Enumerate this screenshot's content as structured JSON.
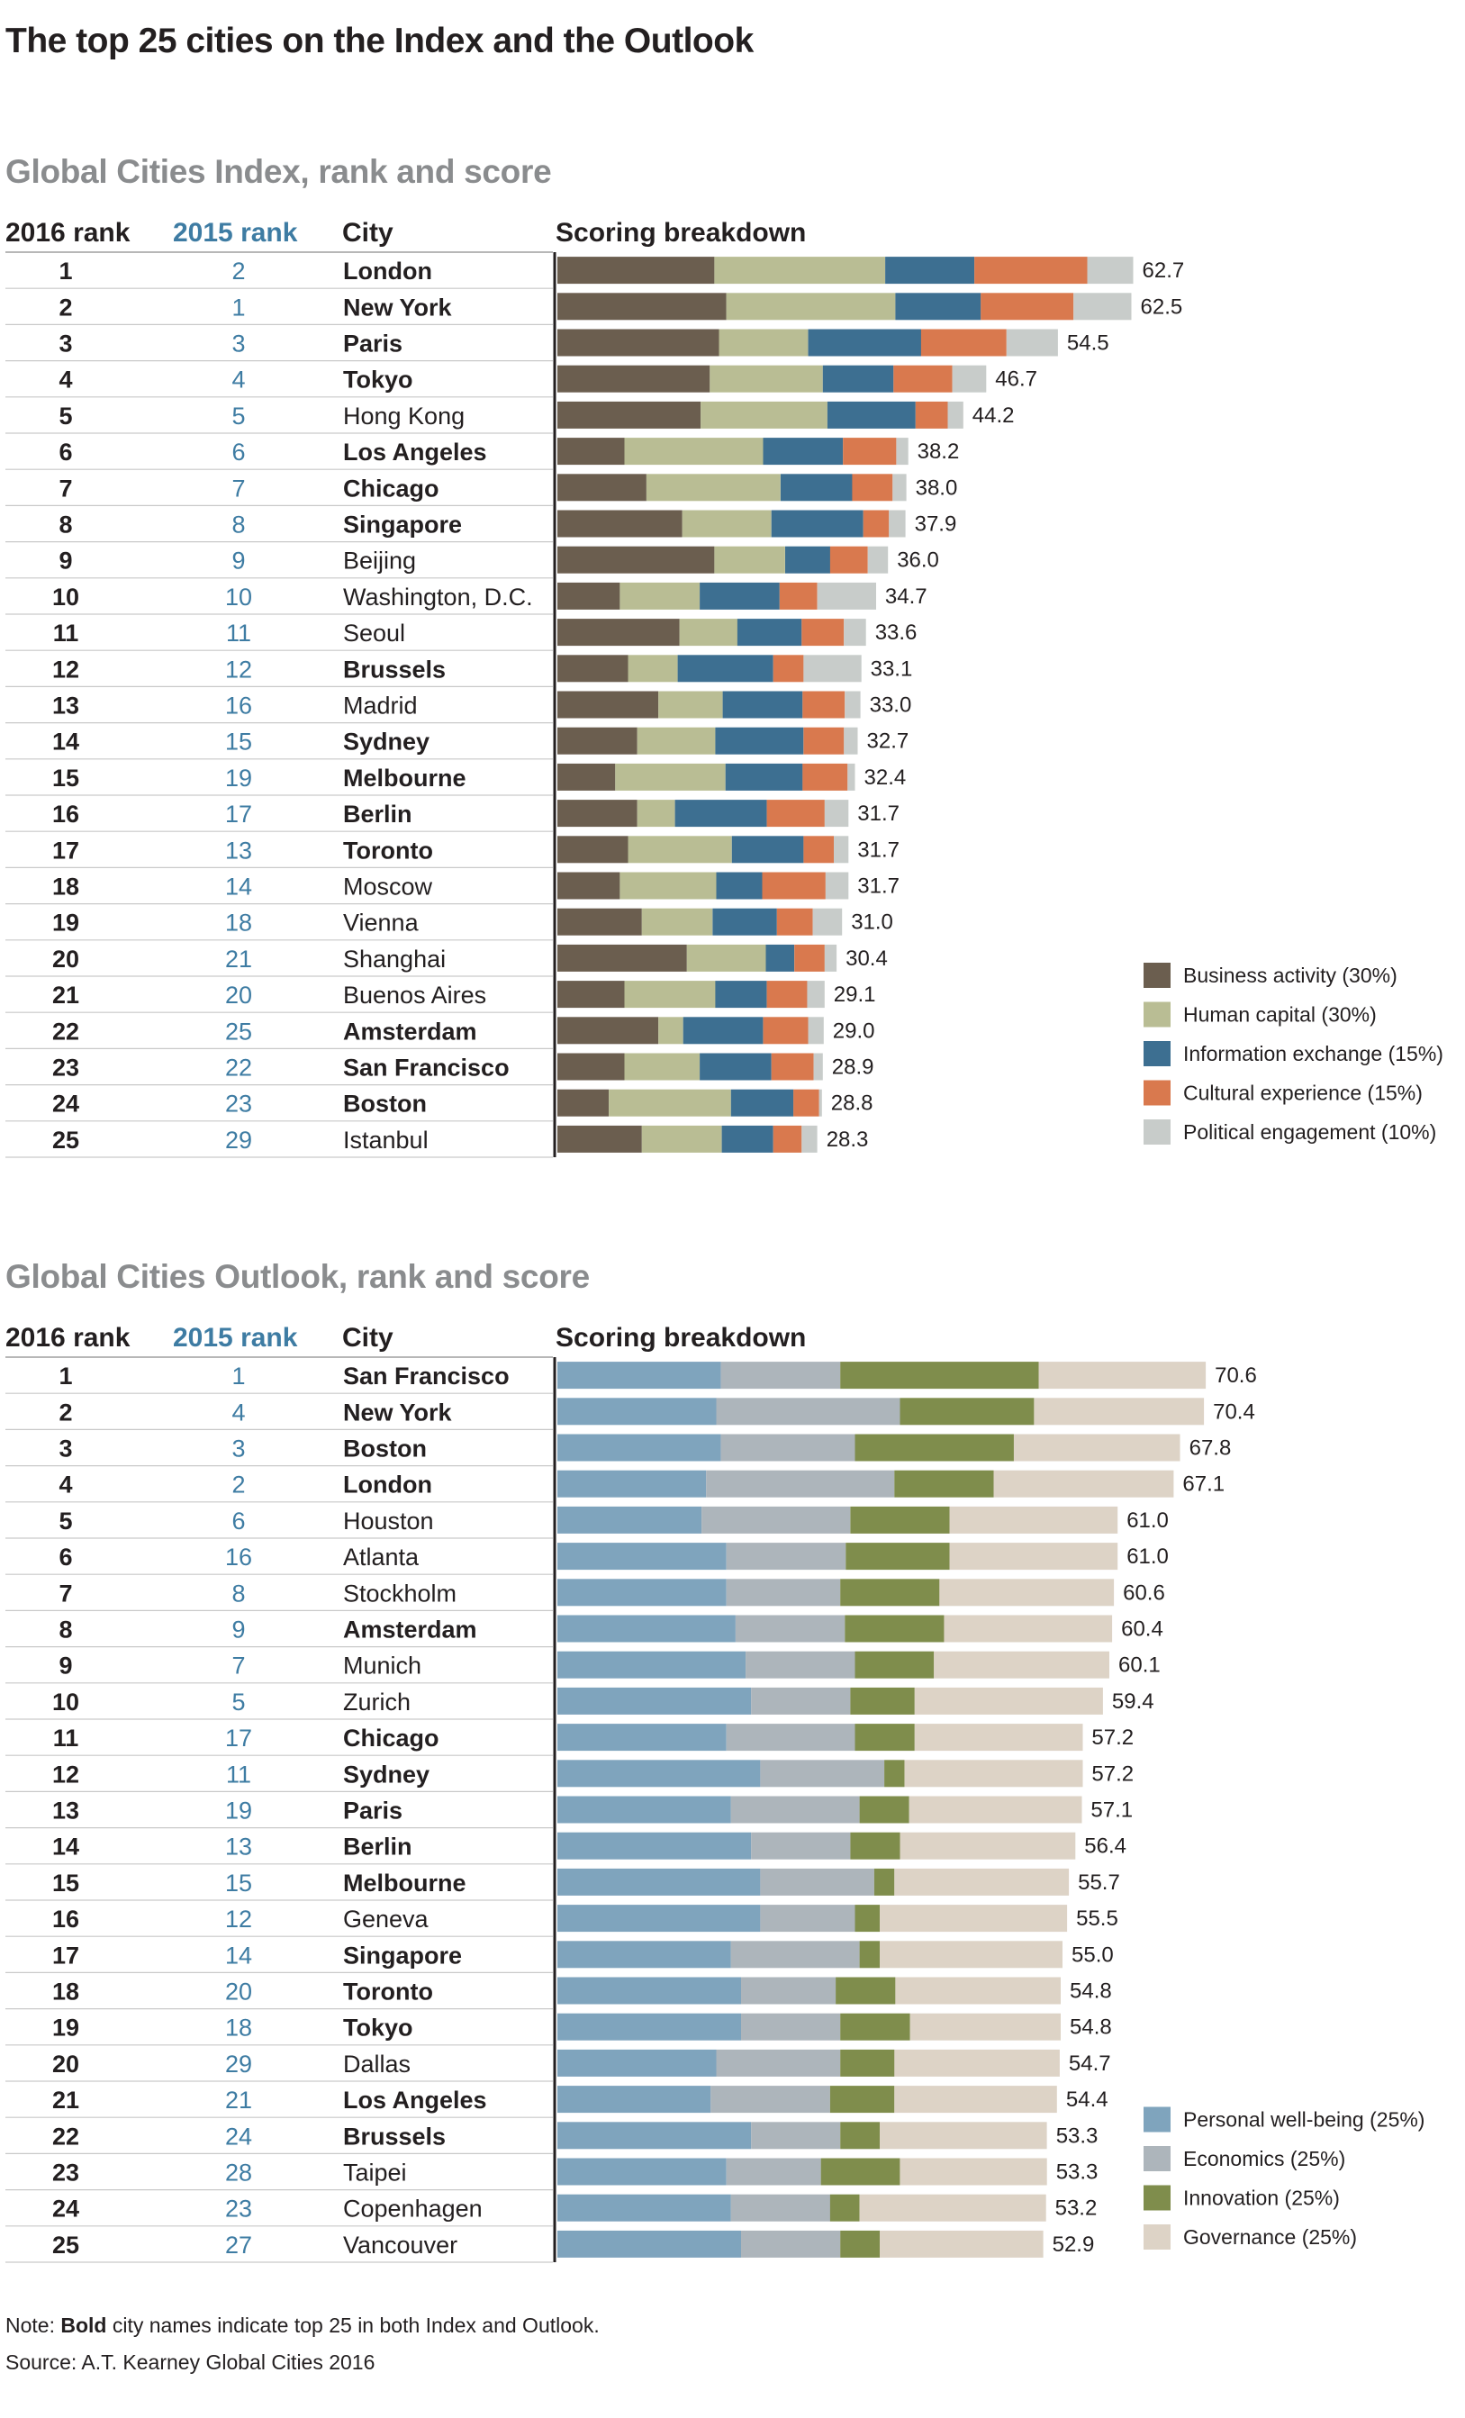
{
  "title": "The top 25 cities on the Index and the Outlook",
  "headers": {
    "rank2016": "2016 rank",
    "rank2015": "2015 rank",
    "city": "City",
    "breakdown": "Scoring breakdown"
  },
  "note": {
    "bold_word": "Bold",
    "prefix": "Note: ",
    "rest": " city names indicate top 25 in both Index and Outlook."
  },
  "source": "Source: A.T. Kearney Global Cities 2016",
  "chart_data": [
    {
      "type": "bar",
      "stacked": true,
      "orientation": "horizontal",
      "title": "Global Cities Index, rank and score",
      "legend_position": "bottom-right",
      "series": [
        {
          "name": "Business activity (30%)",
          "color": "#6b5e4f"
        },
        {
          "name": "Human capital (30%)",
          "color": "#b9bd94"
        },
        {
          "name": "Information exchange (15%)",
          "color": "#3d6f91"
        },
        {
          "name": "Cultural experience (15%)",
          "color": "#d9794e"
        },
        {
          "name": "Political engagement (10%)",
          "color": "#c8ccca"
        }
      ],
      "rows": [
        {
          "rank2016": "1",
          "rank2015": "2",
          "city": "London",
          "bold": true,
          "score": "62.7",
          "parts": [
            17.1,
            18.6,
            9.7,
            12.3,
            5.0
          ]
        },
        {
          "rank2016": "2",
          "rank2015": "1",
          "city": "New York",
          "bold": true,
          "score": "62.5",
          "parts": [
            18.4,
            18.4,
            9.3,
            10.1,
            6.3
          ]
        },
        {
          "rank2016": "3",
          "rank2015": "3",
          "city": "Paris",
          "bold": true,
          "score": "54.5",
          "parts": [
            17.6,
            9.7,
            12.3,
            9.3,
            5.6
          ]
        },
        {
          "rank2016": "4",
          "rank2015": "4",
          "city": "Tokyo",
          "bold": true,
          "score": "46.7",
          "parts": [
            16.6,
            12.3,
            7.7,
            6.4,
            3.7
          ]
        },
        {
          "rank2016": "5",
          "rank2015": "5",
          "city": "Hong Kong",
          "bold": false,
          "score": "44.2",
          "parts": [
            15.6,
            13.8,
            9.6,
            3.5,
            1.7
          ]
        },
        {
          "rank2016": "6",
          "rank2015": "6",
          "city": "Los Angeles",
          "bold": true,
          "score": "38.2",
          "parts": [
            7.3,
            15.1,
            8.7,
            5.8,
            1.3
          ]
        },
        {
          "rank2016": "7",
          "rank2015": "7",
          "city": "Chicago",
          "bold": true,
          "score": "38.0",
          "parts": [
            9.7,
            14.6,
            7.8,
            4.4,
            1.5
          ]
        },
        {
          "rank2016": "8",
          "rank2015": "8",
          "city": "Singapore",
          "bold": true,
          "score": "37.9",
          "parts": [
            13.6,
            9.7,
            10.0,
            2.8,
            1.8
          ]
        },
        {
          "rank2016": "9",
          "rank2015": "9",
          "city": "Beijing",
          "bold": false,
          "score": "36.0",
          "parts": [
            17.1,
            7.7,
            4.9,
            4.1,
            2.2
          ]
        },
        {
          "rank2016": "10",
          "rank2015": "10",
          "city": "Washington, D.C.",
          "bold": false,
          "score": "34.7",
          "parts": [
            6.8,
            8.7,
            8.7,
            4.1,
            6.4
          ]
        },
        {
          "rank2016": "11",
          "rank2015": "11",
          "city": "Seoul",
          "bold": false,
          "score": "33.6",
          "parts": [
            13.3,
            6.3,
            7.0,
            4.6,
            2.4
          ]
        },
        {
          "rank2016": "12",
          "rank2015": "12",
          "city": "Brussels",
          "bold": true,
          "score": "33.1",
          "parts": [
            7.7,
            5.4,
            10.4,
            3.3,
            6.3
          ]
        },
        {
          "rank2016": "13",
          "rank2015": "16",
          "city": "Madrid",
          "bold": false,
          "score": "33.0",
          "parts": [
            11.0,
            7.0,
            8.7,
            4.6,
            1.7
          ]
        },
        {
          "rank2016": "14",
          "rank2015": "15",
          "city": "Sydney",
          "bold": true,
          "score": "32.7",
          "parts": [
            8.7,
            8.5,
            9.6,
            4.4,
            1.5
          ]
        },
        {
          "rank2016": "15",
          "rank2015": "19",
          "city": "Melbourne",
          "bold": true,
          "score": "32.4",
          "parts": [
            6.3,
            12.0,
            8.4,
            4.9,
            0.8
          ]
        },
        {
          "rank2016": "16",
          "rank2015": "17",
          "city": "Berlin",
          "bold": true,
          "score": "31.7",
          "parts": [
            8.7,
            4.1,
            10.0,
            6.3,
            2.6
          ]
        },
        {
          "rank2016": "17",
          "rank2015": "13",
          "city": "Toronto",
          "bold": true,
          "score": "31.7",
          "parts": [
            7.7,
            11.3,
            7.8,
            3.3,
            1.6
          ]
        },
        {
          "rank2016": "18",
          "rank2015": "14",
          "city": "Moscow",
          "bold": false,
          "score": "31.7",
          "parts": [
            6.8,
            10.5,
            5.0,
            6.9,
            2.5
          ]
        },
        {
          "rank2016": "19",
          "rank2015": "18",
          "city": "Vienna",
          "bold": false,
          "score": "31.0",
          "parts": [
            9.2,
            7.7,
            7.0,
            3.9,
            3.2
          ]
        },
        {
          "rank2016": "20",
          "rank2015": "21",
          "city": "Shanghai",
          "bold": false,
          "score": "30.4",
          "parts": [
            14.1,
            8.6,
            3.1,
            3.3,
            1.3
          ]
        },
        {
          "rank2016": "21",
          "rank2015": "20",
          "city": "Buenos Aires",
          "bold": false,
          "score": "29.1",
          "parts": [
            7.3,
            9.9,
            5.6,
            4.4,
            1.9
          ]
        },
        {
          "rank2016": "22",
          "rank2015": "25",
          "city": "Amsterdam",
          "bold": true,
          "score": "29.0",
          "parts": [
            11.0,
            2.7,
            8.7,
            4.9,
            1.7
          ]
        },
        {
          "rank2016": "23",
          "rank2015": "22",
          "city": "San Francisco",
          "bold": true,
          "score": "28.9",
          "parts": [
            7.3,
            8.2,
            7.8,
            4.6,
            1.0
          ]
        },
        {
          "rank2016": "24",
          "rank2015": "23",
          "city": "Boston",
          "bold": true,
          "score": "28.8",
          "parts": [
            5.6,
            13.3,
            6.8,
            2.8,
            0.3
          ]
        },
        {
          "rank2016": "25",
          "rank2015": "29",
          "city": "Istanbul",
          "bold": false,
          "score": "28.3",
          "parts": [
            9.2,
            8.7,
            5.6,
            3.1,
            1.7
          ]
        }
      ]
    },
    {
      "type": "bar",
      "stacked": true,
      "orientation": "horizontal",
      "title": "Global Cities Outlook, rank and score",
      "legend_position": "bottom-right",
      "series": [
        {
          "name": "Personal well-being (25%)",
          "color": "#7fa4bd"
        },
        {
          "name": "Economics (25%)",
          "color": "#adb5bb"
        },
        {
          "name": "Innovation (25%)",
          "color": "#7f8d4c"
        },
        {
          "name": "Governance (25%)",
          "color": "#ddd3c6"
        }
      ],
      "rows": [
        {
          "rank2016": "1",
          "rank2015": "1",
          "city": "San Francisco",
          "bold": true,
          "score": "70.6",
          "parts": [
            17.8,
            13.0,
            21.6,
            18.2
          ]
        },
        {
          "rank2016": "2",
          "rank2015": "4",
          "city": "New York",
          "bold": true,
          "score": "70.4",
          "parts": [
            17.3,
            20.0,
            14.6,
            18.5
          ]
        },
        {
          "rank2016": "3",
          "rank2015": "3",
          "city": "Boston",
          "bold": true,
          "score": "67.8",
          "parts": [
            17.8,
            14.6,
            17.3,
            18.1
          ]
        },
        {
          "rank2016": "4",
          "rank2015": "2",
          "city": "London",
          "bold": true,
          "score": "67.1",
          "parts": [
            16.2,
            20.5,
            10.8,
            19.6
          ]
        },
        {
          "rank2016": "5",
          "rank2015": "6",
          "city": "Houston",
          "bold": false,
          "score": "61.0",
          "parts": [
            15.7,
            16.2,
            10.8,
            18.3
          ]
        },
        {
          "rank2016": "6",
          "rank2015": "16",
          "city": "Atlanta",
          "bold": false,
          "score": "61.0",
          "parts": [
            18.4,
            13.0,
            11.3,
            18.3
          ]
        },
        {
          "rank2016": "7",
          "rank2015": "8",
          "city": "Stockholm",
          "bold": false,
          "score": "60.6",
          "parts": [
            18.4,
            12.4,
            10.8,
            19.0
          ]
        },
        {
          "rank2016": "8",
          "rank2015": "9",
          "city": "Amsterdam",
          "bold": true,
          "score": "60.4",
          "parts": [
            19.4,
            11.9,
            10.8,
            18.3
          ]
        },
        {
          "rank2016": "9",
          "rank2015": "7",
          "city": "Munich",
          "bold": false,
          "score": "60.1",
          "parts": [
            20.5,
            11.9,
            8.6,
            19.1
          ]
        },
        {
          "rank2016": "10",
          "rank2015": "5",
          "city": "Zurich",
          "bold": false,
          "score": "59.4",
          "parts": [
            21.1,
            10.8,
            7.0,
            20.5
          ]
        },
        {
          "rank2016": "11",
          "rank2015": "17",
          "city": "Chicago",
          "bold": true,
          "score": "57.2",
          "parts": [
            18.4,
            14.0,
            6.5,
            18.3
          ]
        },
        {
          "rank2016": "12",
          "rank2015": "11",
          "city": "Sydney",
          "bold": true,
          "score": "57.2",
          "parts": [
            22.1,
            13.5,
            2.2,
            19.4
          ]
        },
        {
          "rank2016": "13",
          "rank2015": "19",
          "city": "Paris",
          "bold": true,
          "score": "57.1",
          "parts": [
            18.9,
            14.0,
            5.4,
            18.8
          ]
        },
        {
          "rank2016": "14",
          "rank2015": "13",
          "city": "Berlin",
          "bold": true,
          "score": "56.4",
          "parts": [
            21.1,
            10.8,
            5.4,
            19.1
          ]
        },
        {
          "rank2016": "15",
          "rank2015": "15",
          "city": "Melbourne",
          "bold": true,
          "score": "55.7",
          "parts": [
            22.1,
            12.4,
            2.2,
            19.0
          ]
        },
        {
          "rank2016": "16",
          "rank2015": "12",
          "city": "Geneva",
          "bold": false,
          "score": "55.5",
          "parts": [
            22.1,
            10.3,
            2.7,
            20.4
          ]
        },
        {
          "rank2016": "17",
          "rank2015": "14",
          "city": "Singapore",
          "bold": true,
          "score": "55.0",
          "parts": [
            18.9,
            14.0,
            2.2,
            19.9
          ]
        },
        {
          "rank2016": "18",
          "rank2015": "20",
          "city": "Toronto",
          "bold": true,
          "score": "54.8",
          "parts": [
            20.0,
            10.3,
            6.5,
            18.0
          ]
        },
        {
          "rank2016": "19",
          "rank2015": "18",
          "city": "Tokyo",
          "bold": true,
          "score": "54.8",
          "parts": [
            20.0,
            10.8,
            7.6,
            16.4
          ]
        },
        {
          "rank2016": "20",
          "rank2015": "29",
          "city": "Dallas",
          "bold": false,
          "score": "54.7",
          "parts": [
            17.3,
            13.5,
            5.9,
            18.0
          ]
        },
        {
          "rank2016": "21",
          "rank2015": "21",
          "city": "Los Angeles",
          "bold": true,
          "score": "54.4",
          "parts": [
            16.7,
            13.0,
            7.0,
            17.7
          ]
        },
        {
          "rank2016": "22",
          "rank2015": "24",
          "city": "Brussels",
          "bold": true,
          "score": "53.3",
          "parts": [
            21.1,
            9.7,
            4.3,
            18.2
          ]
        },
        {
          "rank2016": "23",
          "rank2015": "28",
          "city": "Taipei",
          "bold": false,
          "score": "53.3",
          "parts": [
            18.4,
            10.3,
            8.6,
            16.0
          ]
        },
        {
          "rank2016": "24",
          "rank2015": "23",
          "city": "Copenhagen",
          "bold": false,
          "score": "53.2",
          "parts": [
            18.9,
            10.8,
            3.2,
            20.3
          ]
        },
        {
          "rank2016": "25",
          "rank2015": "27",
          "city": "Vancouver",
          "bold": false,
          "score": "52.9",
          "parts": [
            20.0,
            10.8,
            4.3,
            17.8
          ]
        }
      ]
    }
  ]
}
